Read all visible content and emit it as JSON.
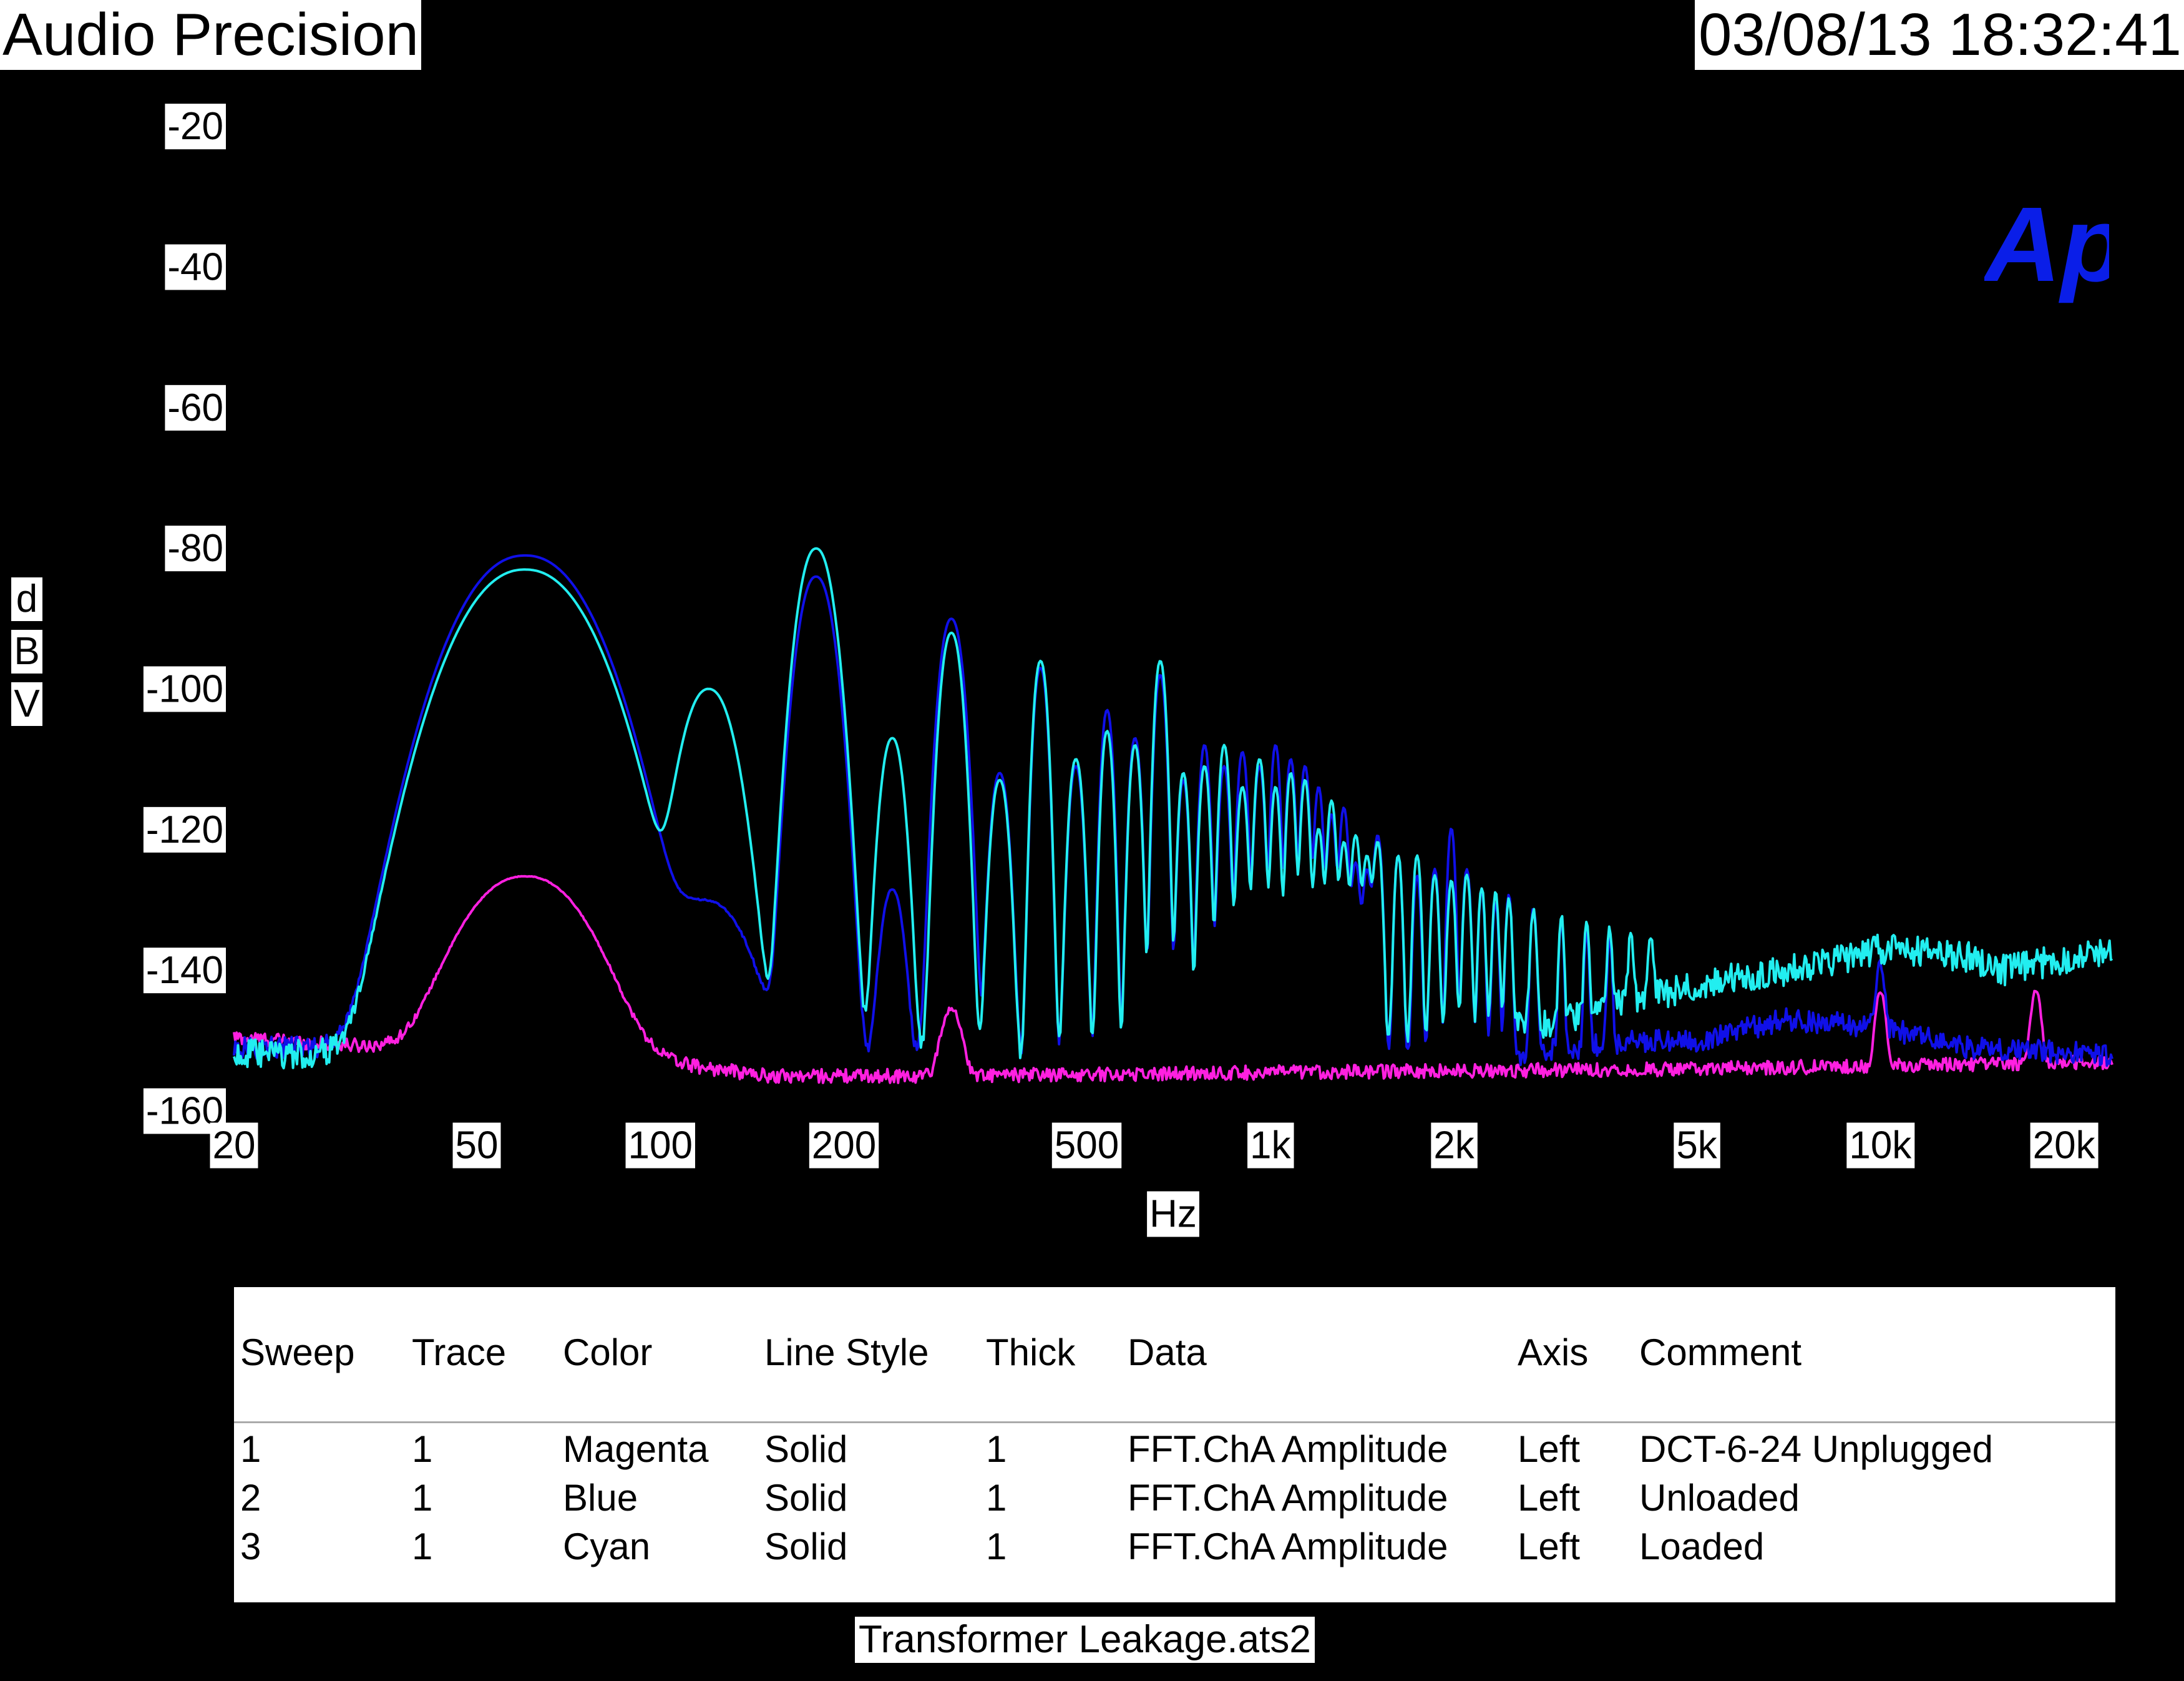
{
  "header": {
    "app_title": "Audio Precision",
    "timestamp": "03/08/13 18:32:41"
  },
  "logo": {
    "text": "Ap",
    "color": "#0a1ee8"
  },
  "file_name": "Transformer Leakage.ats2",
  "chart_data": {
    "type": "line",
    "xlabel": "Hz",
    "ylabel": "dBV",
    "x_scale": "log",
    "xlim": [
      20,
      24000
    ],
    "ylim": [
      -160,
      -10
    ],
    "background": "#000000",
    "grid": false,
    "y_ticks": [
      -20,
      -40,
      -60,
      -80,
      -100,
      -120,
      -140,
      -160
    ],
    "x_ticks": [
      {
        "value": 20,
        "label": "20"
      },
      {
        "value": 50,
        "label": "50"
      },
      {
        "value": 100,
        "label": "100"
      },
      {
        "value": 200,
        "label": "200"
      },
      {
        "value": 500,
        "label": "500"
      },
      {
        "value": 1000,
        "label": "1k"
      },
      {
        "value": 2000,
        "label": "2k"
      },
      {
        "value": 5000,
        "label": "5k"
      },
      {
        "value": 10000,
        "label": "10k"
      },
      {
        "value": 20000,
        "label": "20k"
      }
    ],
    "series": [
      {
        "name": "DCT-6-24 Unplugged",
        "sweep": "1",
        "color": "#ff20e0",
        "peaks": [
          {
            "f": 60,
            "db": -127,
            "w": 0.11
          },
          {
            "f": 300,
            "db": -149,
            "w": 0.02
          },
          {
            "f": 10000,
            "db": -146,
            "w": 0.01
          },
          {
            "f": 18000,
            "db": -146,
            "w": 0.01
          }
        ],
        "floor": [
          [
            20,
            -149.5
          ],
          [
            35,
            -151
          ],
          [
            45,
            -154
          ],
          [
            55,
            -154
          ],
          [
            70,
            -153
          ],
          [
            100,
            -153
          ],
          [
            150,
            -155
          ],
          [
            300,
            -155
          ],
          [
            1000,
            -154.5
          ],
          [
            5000,
            -154
          ],
          [
            24000,
            -153
          ]
        ],
        "noise": 1.0
      },
      {
        "name": "Unloaded",
        "sweep": "2",
        "color": "#1010e8",
        "peaks": [
          {
            "f": 60,
            "db": -81,
            "w": 0.11
          },
          {
            "f": 120,
            "db": -131,
            "w": 0.07
          },
          {
            "f": 180,
            "db": -84,
            "w": 0.03
          },
          {
            "f": 240,
            "db": -129,
            "w": 0.02
          },
          {
            "f": 300,
            "db": -90,
            "w": 0.02
          },
          {
            "f": 360,
            "db": -112,
            "w": 0.015
          },
          {
            "f": 420,
            "db": -97,
            "w": 0.012
          },
          {
            "f": 480,
            "db": -111,
            "w": 0.012
          },
          {
            "f": 540,
            "db": -103,
            "w": 0.01
          },
          {
            "f": 600,
            "db": -107,
            "w": 0.01
          },
          {
            "f": 660,
            "db": -98,
            "w": 0.01
          },
          {
            "f": 720,
            "db": -113,
            "w": 0.009
          },
          {
            "f": 780,
            "db": -108,
            "w": 0.009
          },
          {
            "f": 840,
            "db": -111,
            "w": 0.009
          },
          {
            "f": 900,
            "db": -109,
            "w": 0.009
          },
          {
            "f": 960,
            "db": -111,
            "w": 0.009
          },
          {
            "f": 1020,
            "db": -108,
            "w": 0.008
          },
          {
            "f": 1080,
            "db": -110,
            "w": 0.008
          },
          {
            "f": 1140,
            "db": -111,
            "w": 0.008
          },
          {
            "f": 1200,
            "db": -114,
            "w": 0.008
          },
          {
            "f": 1260,
            "db": -118,
            "w": 0.008
          },
          {
            "f": 1320,
            "db": -117,
            "w": 0.008
          },
          {
            "f": 1380,
            "db": -125,
            "w": 0.008
          },
          {
            "f": 1440,
            "db": -126,
            "w": 0.008
          },
          {
            "f": 1500,
            "db": -121,
            "w": 0.008
          },
          {
            "f": 1620,
            "db": -124,
            "w": 0.007
          },
          {
            "f": 1740,
            "db": -127,
            "w": 0.007
          },
          {
            "f": 1860,
            "db": -126,
            "w": 0.007
          },
          {
            "f": 1980,
            "db": -120,
            "w": 0.007
          },
          {
            "f": 2100,
            "db": -126,
            "w": 0.007
          },
          {
            "f": 2220,
            "db": -129,
            "w": 0.006
          },
          {
            "f": 2340,
            "db": -131,
            "w": 0.006
          },
          {
            "f": 2460,
            "db": -130,
            "w": 0.006
          },
          {
            "f": 2700,
            "db": -132,
            "w": 0.006
          },
          {
            "f": 3000,
            "db": -134,
            "w": 0.005
          },
          {
            "f": 3300,
            "db": -136,
            "w": 0.005
          },
          {
            "f": 3600,
            "db": -137,
            "w": 0.005
          },
          {
            "f": 10000,
            "db": -143,
            "w": 0.008
          }
        ],
        "floor": [
          [
            20,
            -151
          ],
          [
            35,
            -151
          ],
          [
            45,
            -152
          ],
          [
            55,
            -152
          ],
          [
            70,
            -151
          ],
          [
            100,
            -153
          ],
          [
            150,
            -153
          ],
          [
            300,
            -153
          ],
          [
            1000,
            -154
          ],
          [
            2000,
            -153
          ],
          [
            4000,
            -150
          ],
          [
            5000,
            -150
          ],
          [
            7000,
            -147
          ],
          [
            10000,
            -148
          ],
          [
            14000,
            -151
          ],
          [
            24000,
            -152
          ]
        ],
        "noise": 1.6
      },
      {
        "name": "Loaded",
        "sweep": "3",
        "color": "#22eef0",
        "peaks": [
          {
            "f": 60,
            "db": -83,
            "w": 0.11
          },
          {
            "f": 120,
            "db": -100,
            "w": 0.045
          },
          {
            "f": 180,
            "db": -80,
            "w": 0.03
          },
          {
            "f": 240,
            "db": -107,
            "w": 0.02
          },
          {
            "f": 300,
            "db": -92,
            "w": 0.018
          },
          {
            "f": 360,
            "db": -113,
            "w": 0.015
          },
          {
            "f": 420,
            "db": -96,
            "w": 0.012
          },
          {
            "f": 480,
            "db": -110,
            "w": 0.012
          },
          {
            "f": 540,
            "db": -106,
            "w": 0.01
          },
          {
            "f": 600,
            "db": -108,
            "w": 0.01
          },
          {
            "f": 660,
            "db": -96,
            "w": 0.01
          },
          {
            "f": 720,
            "db": -112,
            "w": 0.009
          },
          {
            "f": 780,
            "db": -111,
            "w": 0.009
          },
          {
            "f": 840,
            "db": -108,
            "w": 0.009
          },
          {
            "f": 900,
            "db": -114,
            "w": 0.009
          },
          {
            "f": 960,
            "db": -110,
            "w": 0.009
          },
          {
            "f": 1020,
            "db": -114,
            "w": 0.008
          },
          {
            "f": 1080,
            "db": -112,
            "w": 0.008
          },
          {
            "f": 1140,
            "db": -113,
            "w": 0.008
          },
          {
            "f": 1200,
            "db": -120,
            "w": 0.008
          },
          {
            "f": 1260,
            "db": -116,
            "w": 0.008
          },
          {
            "f": 1320,
            "db": -122,
            "w": 0.008
          },
          {
            "f": 1380,
            "db": -121,
            "w": 0.008
          },
          {
            "f": 1440,
            "db": -124,
            "w": 0.008
          },
          {
            "f": 1500,
            "db": -122,
            "w": 0.008
          },
          {
            "f": 1620,
            "db": -124,
            "w": 0.007
          },
          {
            "f": 1740,
            "db": -124,
            "w": 0.007
          },
          {
            "f": 1860,
            "db": -127,
            "w": 0.007
          },
          {
            "f": 1980,
            "db": -128,
            "w": 0.007
          },
          {
            "f": 2100,
            "db": -127,
            "w": 0.007
          },
          {
            "f": 2220,
            "db": -129,
            "w": 0.006
          },
          {
            "f": 2340,
            "db": -130,
            "w": 0.006
          },
          {
            "f": 2460,
            "db": -131,
            "w": 0.006
          },
          {
            "f": 2700,
            "db": -133,
            "w": 0.006
          },
          {
            "f": 3000,
            "db": -134,
            "w": 0.005
          },
          {
            "f": 3300,
            "db": -135,
            "w": 0.005
          },
          {
            "f": 3600,
            "db": -137,
            "w": 0.005
          },
          {
            "f": 3900,
            "db": -138,
            "w": 0.005
          },
          {
            "f": 4200,
            "db": -139,
            "w": 0.005
          }
        ],
        "floor": [
          [
            20,
            -152
          ],
          [
            40,
            -152
          ],
          [
            45,
            -153.5
          ],
          [
            55,
            -153
          ],
          [
            70,
            -152
          ],
          [
            100,
            -154
          ],
          [
            120,
            -151
          ],
          [
            150,
            -153
          ],
          [
            300,
            -154
          ],
          [
            1000,
            -154
          ],
          [
            1500,
            -152
          ],
          [
            2000,
            -150
          ],
          [
            3000,
            -147
          ],
          [
            5000,
            -142
          ],
          [
            7000,
            -140
          ],
          [
            10000,
            -137
          ],
          [
            14000,
            -138
          ],
          [
            16000,
            -140
          ],
          [
            24000,
            -137
          ]
        ],
        "noise": 2.2
      }
    ]
  },
  "legend": {
    "headers": [
      "Sweep",
      "Trace",
      "Color",
      "Line Style",
      "Thick",
      "Data",
      "Axis",
      "Comment"
    ],
    "rows": [
      [
        "1",
        "1",
        "Magenta",
        "Solid",
        "1",
        "FFT.ChA Amplitude",
        "Left",
        "DCT-6-24 Unplugged"
      ],
      [
        "2",
        "1",
        "Blue",
        "Solid",
        "1",
        "FFT.ChA Amplitude",
        "Left",
        "Unloaded"
      ],
      [
        "3",
        "1",
        "Cyan",
        "Solid",
        "1",
        "FFT.ChA Amplitude",
        "Left",
        "Loaded"
      ]
    ]
  }
}
